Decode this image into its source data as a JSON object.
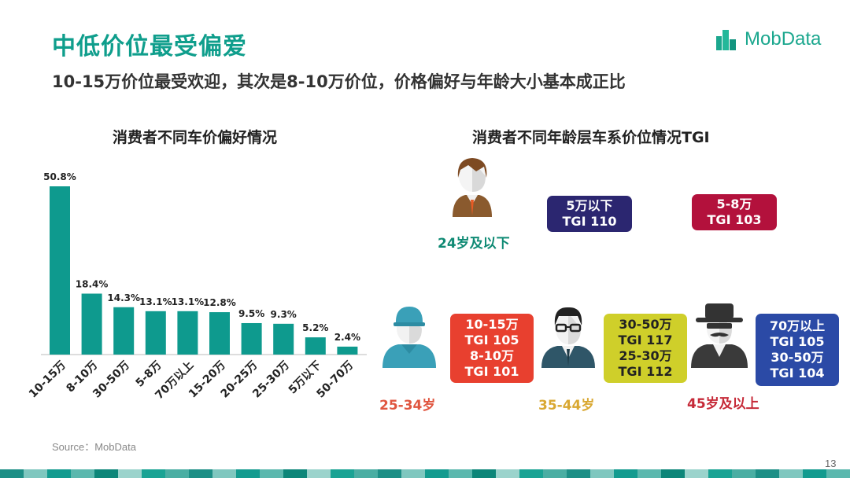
{
  "header": {
    "title": "中低价位最受偏爱",
    "subtitle": "10-15万价位最受欢迎，其次是8-10万价位，价格偏好与年龄大小基本成正比",
    "logo_text": "MobData"
  },
  "chart_data": [
    {
      "type": "bar",
      "title": "消费者不同车价偏好情况",
      "categories": [
        "10-15万",
        "8-10万",
        "30-50万",
        "5-8万",
        "70万以上",
        "15-20万",
        "20-25万",
        "25-30万",
        "5万以下",
        "50-70万"
      ],
      "values": [
        50.8,
        18.4,
        14.3,
        13.1,
        13.1,
        12.8,
        9.5,
        9.3,
        5.2,
        2.4
      ],
      "value_labels": [
        "50.8%",
        "18.4%",
        "14.3%",
        "13.1%",
        "13.1%",
        "12.8%",
        "9.5%",
        "9.3%",
        "5.2%",
        "2.4%"
      ],
      "ylim": [
        0,
        50.8
      ],
      "grid": false,
      "color": "#0e9a8e"
    },
    {
      "type": "table",
      "title": "消费者不同年龄层车系价位情况TGI",
      "groups": [
        {
          "age": "24岁及以下",
          "age_color": "#0f8a74",
          "avatar": "young-person-avatar-icon",
          "boxes": [
            {
              "lines": [
                "5万以下",
                "TGI 110"
              ],
              "color": "#2b2670"
            },
            {
              "lines": [
                "5-8万",
                "TGI 103"
              ],
              "color": "#b3113c"
            }
          ]
        },
        {
          "age": "25-34岁",
          "age_color": "#e0553f",
          "avatar": "cap-wearing-person-avatar-icon",
          "boxes": [
            {
              "lines": [
                "10-15万",
                "TGI 105",
                "8-10万",
                "TGI 101"
              ],
              "color": "#e8402f"
            }
          ]
        },
        {
          "age": "35-44岁",
          "age_color": "#d9a832",
          "avatar": "glasses-person-avatar-icon",
          "boxes": [
            {
              "lines": [
                "30-50万",
                "TGI 117",
                "25-30万",
                "TGI 112"
              ],
              "color": "#cfcf2a",
              "text_color": "#222222"
            }
          ]
        },
        {
          "age": "45岁及以上",
          "age_color": "#c62a38",
          "avatar": "hat-mustache-person-avatar-icon",
          "boxes": [
            {
              "lines": [
                "70万以上",
                "TGI 105",
                "30-50万",
                "TGI 104"
              ],
              "color": "#2b4aa6"
            }
          ]
        }
      ]
    }
  ],
  "footer": {
    "source": "Source：MobData",
    "page_number": "13",
    "bar_colors": [
      "#1d8f86",
      "#7fc7bf",
      "#139b8f",
      "#5bb8ae",
      "#0d8679",
      "#9bd3cc",
      "#1aa394",
      "#4aaea3"
    ]
  }
}
